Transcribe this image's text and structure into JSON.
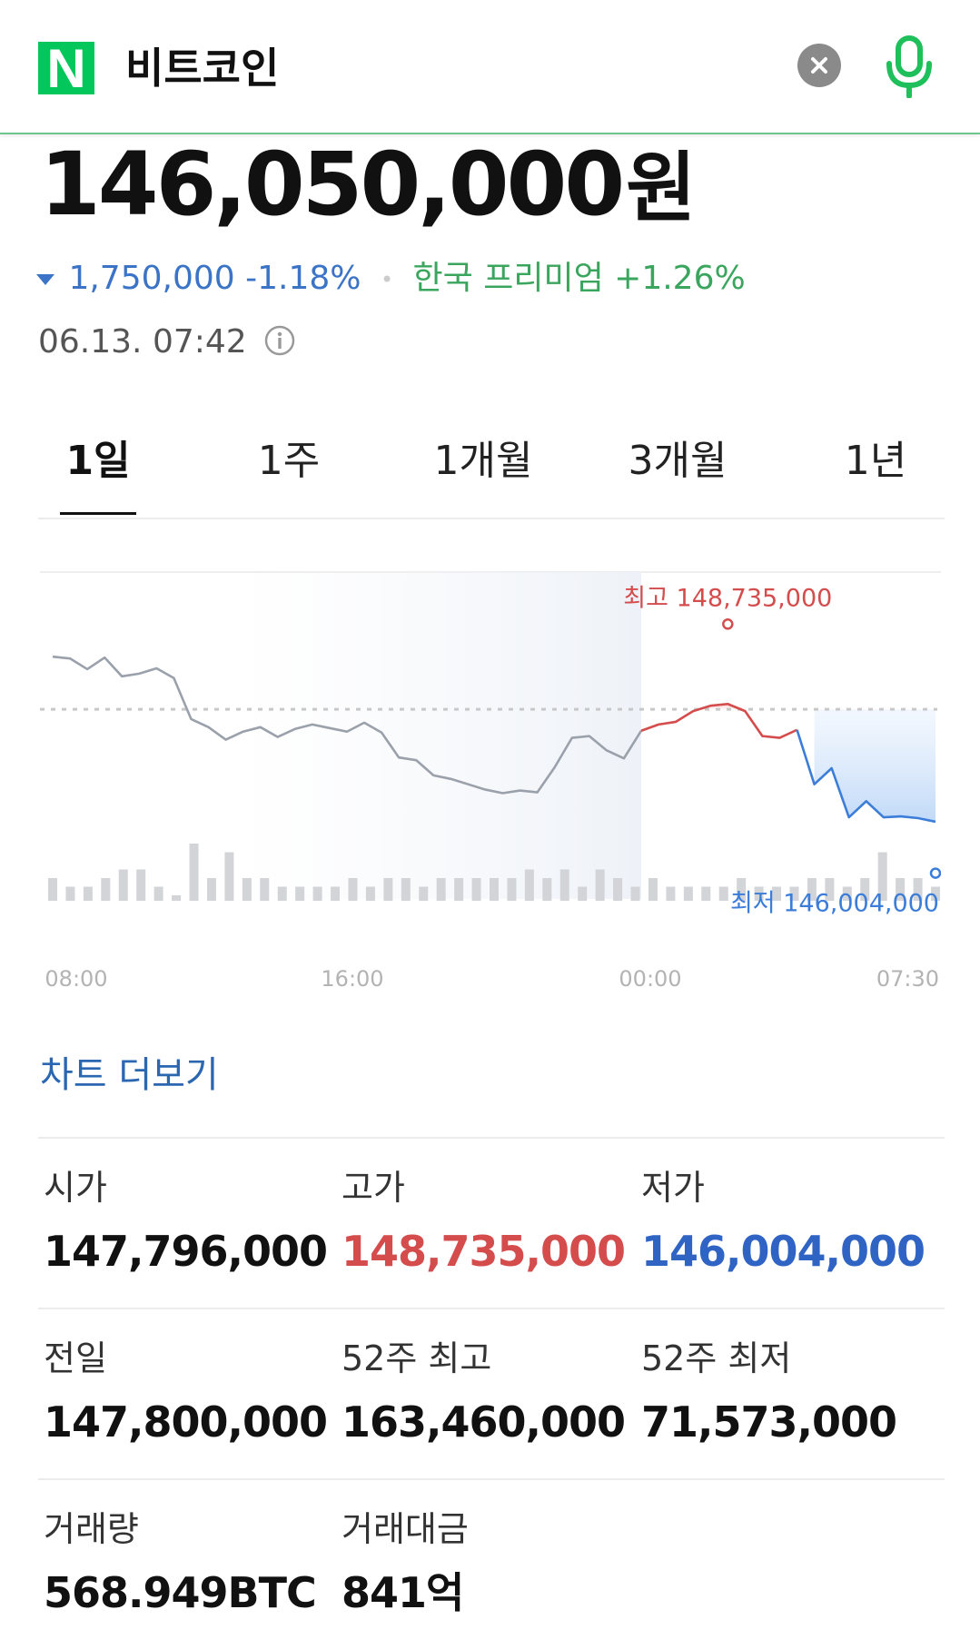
{
  "header": {
    "logo_letter": "N",
    "query": "비트코인"
  },
  "quote": {
    "price": "146,050,000",
    "unit": "원",
    "change_amount": "1,750,000",
    "change_percent": "-1.18%",
    "premium_label": "한국 프리미엄",
    "premium_value": "+1.26%",
    "timestamp": "06.13. 07:42"
  },
  "tabs": [
    {
      "label": "1일",
      "active": true
    },
    {
      "label": "1주",
      "active": false
    },
    {
      "label": "1개월",
      "active": false
    },
    {
      "label": "3개월",
      "active": false
    },
    {
      "label": "1년",
      "active": false
    }
  ],
  "chart_data": {
    "type": "line",
    "x_tick_labels": [
      "08:00",
      "16:00",
      "00:00",
      "07:30"
    ],
    "high_label": "최고 148,735,000",
    "low_label": "최저 146,004,000",
    "high": 148735000,
    "low": 146004000,
    "previous_close": 147800000,
    "prices": [
      148390000,
      148370000,
      148250000,
      148380000,
      148170000,
      148200000,
      148260000,
      148150000,
      147690000,
      147600000,
      147460000,
      147550000,
      147600000,
      147490000,
      147580000,
      147630000,
      147590000,
      147550000,
      147650000,
      147540000,
      147260000,
      147230000,
      147060000,
      147020000,
      146960000,
      146900000,
      146860000,
      146890000,
      146870000,
      147150000,
      147480000,
      147500000,
      147340000,
      147250000,
      147560000,
      147630000,
      147660000,
      147780000,
      147840000,
      147860000,
      147780000,
      147500000,
      147480000,
      147570000,
      146960000,
      147140000,
      146590000,
      146770000,
      146590000,
      146600000,
      146580000,
      146540000
    ],
    "colors": {
      "before_midnight": "#9aa1ab",
      "high_segment": "#d44c4c",
      "low_segment": "#3b7dd8",
      "volume": "#d2d4d7"
    },
    "volume": [
      2,
      1,
      1,
      2,
      3,
      3,
      1,
      0,
      6,
      2,
      5,
      2,
      2,
      1,
      1,
      1,
      1,
      2,
      1,
      2,
      2,
      1,
      2,
      2,
      2,
      2,
      2,
      3,
      2,
      3,
      1,
      3,
      2,
      1,
      2,
      1,
      1,
      1,
      1,
      2,
      1,
      1,
      1,
      2,
      2,
      1,
      2,
      5,
      2,
      2,
      1
    ]
  },
  "more_chart_label": "차트 더보기",
  "stats": [
    {
      "label": "시가",
      "value": "147,796,000",
      "tone": "normal"
    },
    {
      "label": "고가",
      "value": "148,735,000",
      "tone": "red"
    },
    {
      "label": "저가",
      "value": "146,004,000",
      "tone": "blue"
    },
    {
      "label": "전일",
      "value": "147,800,000",
      "tone": "normal"
    },
    {
      "label": "52주 최고",
      "value": "163,460,000",
      "tone": "normal"
    },
    {
      "label": "52주 최저",
      "value": "71,573,000",
      "tone": "normal"
    },
    {
      "label": "거래량",
      "value": "568.949BTC",
      "tone": "normal"
    },
    {
      "label": "거래대금",
      "value": "841억",
      "tone": "normal"
    }
  ]
}
